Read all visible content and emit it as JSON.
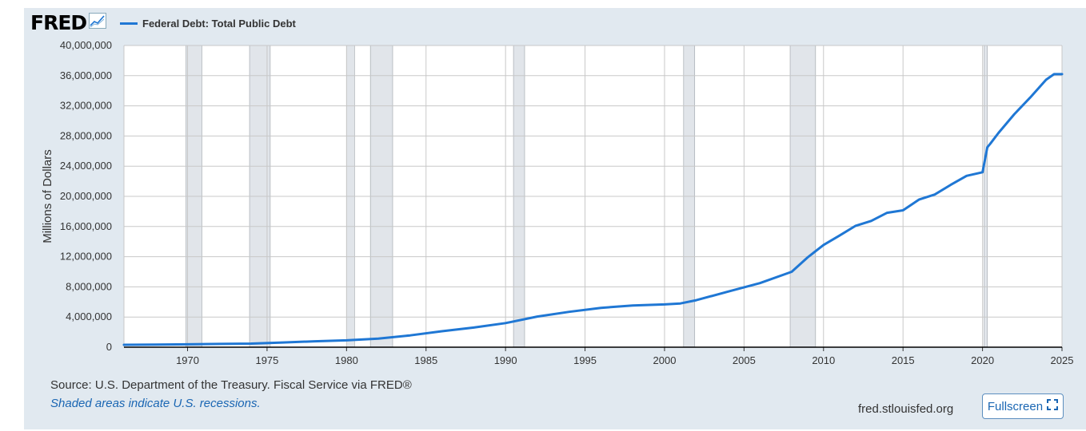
{
  "logo": {
    "text": "FRED",
    "icon": "trend-line-icon"
  },
  "colors": {
    "series": "#1f77d4",
    "recession": "#e1e5ea",
    "grid": "#c8c8c8",
    "frame_bg": "#e1e9f0"
  },
  "footer": {
    "source": "Source: U.S. Department of the Treasury. Fiscal Service via FRED®",
    "note": "Shaded areas indicate U.S. recessions.",
    "site": "fred.stlouisfed.org",
    "fullscreen_label": "Fullscreen",
    "fullscreen_icon": "expand-corners-icon"
  },
  "chart_data": {
    "type": "line",
    "ylabel": "Millions of Dollars",
    "ylim": [
      0,
      40000000
    ],
    "xlim": [
      1966,
      2025
    ],
    "y_ticks": [
      0,
      4000000,
      8000000,
      12000000,
      16000000,
      20000000,
      24000000,
      28000000,
      32000000,
      36000000,
      40000000
    ],
    "y_tick_labels": [
      "0",
      "4,000,000",
      "8,000,000",
      "12,000,000",
      "16,000,000",
      "20,000,000",
      "24,000,000",
      "28,000,000",
      "32,000,000",
      "36,000,000",
      "40,000,000"
    ],
    "x_ticks": [
      1970,
      1975,
      1980,
      1985,
      1990,
      1995,
      2000,
      2005,
      2010,
      2015,
      2020,
      2025
    ],
    "x_tick_labels": [
      "1970",
      "1975",
      "1980",
      "1985",
      "1990",
      "1995",
      "2000",
      "2005",
      "2010",
      "2015",
      "2020",
      "2025"
    ],
    "grid": true,
    "legend_position": "top-left",
    "recessions": [
      [
        1969.9,
        1970.9
      ],
      [
        1973.9,
        1975.2
      ],
      [
        1980.0,
        1980.5
      ],
      [
        1981.5,
        1982.9
      ],
      [
        1990.5,
        1991.2
      ],
      [
        2001.2,
        2001.9
      ],
      [
        2007.9,
        2009.5
      ],
      [
        2020.1,
        2020.3
      ]
    ],
    "series": [
      {
        "name": "Federal Debt: Total Public Debt",
        "x": [
          1966,
          1968,
          1970,
          1972,
          1974,
          1976,
          1978,
          1980,
          1982,
          1984,
          1986,
          1988,
          1990,
          1992,
          1994,
          1996,
          1998,
          2000,
          2001,
          2002,
          2004,
          2006,
          2008,
          2009,
          2010,
          2011,
          2012,
          2013,
          2014,
          2015,
          2016,
          2017,
          2018,
          2019,
          2020.0,
          2020.3,
          2020.5,
          2021,
          2022,
          2023,
          2024,
          2024.5,
          2025
        ],
        "y": [
          320000,
          350000,
          380000,
          430000,
          480000,
          620000,
          780000,
          910000,
          1140000,
          1570000,
          2120000,
          2600000,
          3200000,
          4060000,
          4690000,
          5220000,
          5530000,
          5670000,
          5800000,
          6230000,
          7380000,
          8500000,
          10000000,
          11900000,
          13560000,
          14790000,
          16070000,
          16740000,
          17820000,
          18150000,
          19570000,
          20240000,
          21520000,
          22720000,
          23200000,
          26500000,
          27000000,
          28400000,
          30900000,
          33100000,
          35460000,
          36200000,
          36200000
        ]
      }
    ]
  }
}
